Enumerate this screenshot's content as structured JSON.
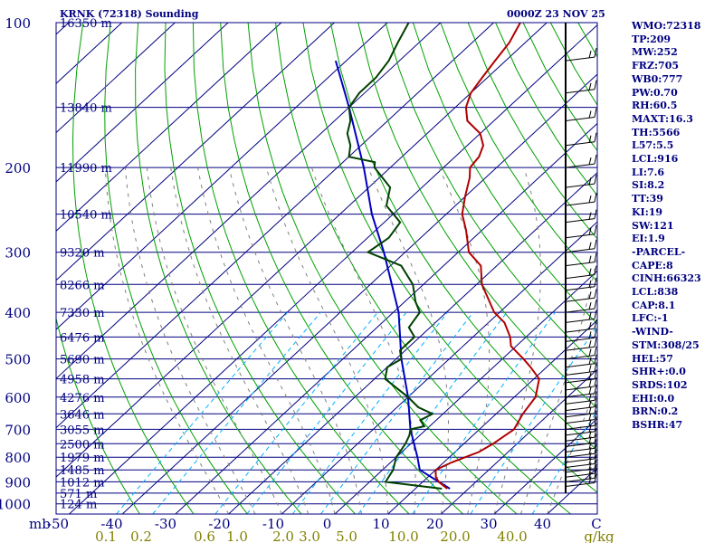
{
  "header": {
    "title": "KRNK (72318) Sounding",
    "time": "0000Z 23 NOV 25"
  },
  "indices": [
    "WMO:72318",
    "TP:209",
    "MW:252",
    "FRZ:705",
    "WB0:777",
    "PW:0.70",
    "RH:60.5",
    "MAXT:16.3",
    "TH:5566",
    "L57:5.5",
    "LCL:916",
    "LI:7.6",
    "SI:8.2",
    "TT:39",
    "KI:19",
    "SW:121",
    "EI:1.9",
    "-PARCEL-",
    "CAPE:8",
    "CINH:66323",
    "LCL:838",
    "CAP:8.1",
    "LFC:-1",
    "-WIND-",
    "STM:308/25",
    "HEL:57",
    "SHR+:0.0",
    "SRDS:102",
    "EHI:0.0",
    "BRN:0.2",
    "BSHR:47"
  ],
  "colors": {
    "axes": "#000080",
    "isotherm": "#000080",
    "dry_adiabat": "#00a000",
    "moist_adiabat": "#808080",
    "mixing_ratio": "#00b0ff",
    "temperature": "#b00000",
    "dewpoint": "#004000",
    "parcel": "#0000c0",
    "mixing_label": "#808000"
  },
  "chart_data": {
    "type": "skew-t",
    "pressure_ticks": [
      {
        "p": 100,
        "label": "100"
      },
      {
        "p": 200,
        "label": "200"
      },
      {
        "p": 300,
        "label": "300"
      },
      {
        "p": 400,
        "label": "400"
      },
      {
        "p": 500,
        "label": "500"
      },
      {
        "p": 600,
        "label": "600"
      },
      {
        "p": 700,
        "label": "700"
      },
      {
        "p": 800,
        "label": "800"
      },
      {
        "p": 900,
        "label": "900"
      },
      {
        "p": 1000,
        "label": "1000"
      }
    ],
    "pressure_unit": "mb",
    "temperature_ticks": [
      "-50",
      "-40",
      "-30",
      "-20",
      "-10",
      "0",
      "10",
      "20",
      "30",
      "40",
      "C"
    ],
    "mixing_ratio_labels": [
      "0.1",
      "0.2",
      "0.6",
      "1.0",
      "2.0",
      "3.0",
      "5.0",
      "10.0",
      "20.0",
      "40.0",
      "g/kg"
    ],
    "height_labels": [
      {
        "p": 100,
        "label": "16350 m"
      },
      {
        "p": 150,
        "label": "13840 m"
      },
      {
        "p": 200,
        "label": "11990 m"
      },
      {
        "p": 250,
        "label": "10540 m"
      },
      {
        "p": 300,
        "label": "9320 m"
      },
      {
        "p": 350,
        "label": "8266 m"
      },
      {
        "p": 400,
        "label": "7330 m"
      },
      {
        "p": 450,
        "label": "6476 m"
      },
      {
        "p": 500,
        "label": "5690 m"
      },
      {
        "p": 550,
        "label": "4958 m"
      },
      {
        "p": 600,
        "label": "4276 m"
      },
      {
        "p": 650,
        "label": "3646 m"
      },
      {
        "p": 700,
        "label": "3055 m"
      },
      {
        "p": 750,
        "label": "2500 m"
      },
      {
        "p": 800,
        "label": "1979 m"
      },
      {
        "p": 850,
        "label": "1485 m"
      },
      {
        "p": 900,
        "label": "1012 m"
      },
      {
        "p": 950,
        "label": "571 m"
      },
      {
        "p": 1000,
        "label": "124 m"
      }
    ],
    "temperature_profile": [
      [
        930,
        16.0
      ],
      [
        900,
        13.0
      ],
      [
        880,
        11.5
      ],
      [
        850,
        10.0
      ],
      [
        820,
        11.5
      ],
      [
        800,
        13.0
      ],
      [
        780,
        14.5
      ],
      [
        750,
        15.5
      ],
      [
        700,
        16.5
      ],
      [
        650,
        15.0
      ],
      [
        600,
        14.0
      ],
      [
        550,
        11.0
      ],
      [
        520,
        7.0
      ],
      [
        500,
        4.0
      ],
      [
        470,
        -1.0
      ],
      [
        450,
        -3.0
      ],
      [
        420,
        -7.0
      ],
      [
        400,
        -11.0
      ],
      [
        350,
        -19.0
      ],
      [
        320,
        -23.0
      ],
      [
        300,
        -28.0
      ],
      [
        270,
        -33.0
      ],
      [
        250,
        -37.0
      ],
      [
        230,
        -40.0
      ],
      [
        210,
        -43.0
      ],
      [
        200,
        -45.0
      ],
      [
        190,
        -45.5
      ],
      [
        180,
        -47.0
      ],
      [
        170,
        -50.0
      ],
      [
        160,
        -55.0
      ],
      [
        150,
        -58.0
      ],
      [
        140,
        -60.0
      ],
      [
        130,
        -61.0
      ],
      [
        120,
        -62.0
      ],
      [
        110,
        -63.0
      ],
      [
        100,
        -65.0
      ]
    ],
    "dewpoint_profile": [
      [
        930,
        15.0
      ],
      [
        920,
        11.0
      ],
      [
        900,
        3.0
      ],
      [
        850,
        2.0
      ],
      [
        800,
        0.0
      ],
      [
        750,
        -1.0
      ],
      [
        720,
        -2.0
      ],
      [
        700,
        -3.0
      ],
      [
        690,
        -1.0
      ],
      [
        670,
        -3.0
      ],
      [
        650,
        -2.0
      ],
      [
        630,
        -6.0
      ],
      [
        600,
        -10.0
      ],
      [
        550,
        -18.0
      ],
      [
        520,
        -20.0
      ],
      [
        500,
        -19.0
      ],
      [
        480,
        -21.0
      ],
      [
        450,
        -21.0
      ],
      [
        430,
        -24.0
      ],
      [
        400,
        -25.0
      ],
      [
        380,
        -28.0
      ],
      [
        350,
        -32.0
      ],
      [
        320,
        -38.0
      ],
      [
        300,
        -47.0
      ],
      [
        280,
        -46.0
      ],
      [
        260,
        -47.0
      ],
      [
        240,
        -53.0
      ],
      [
        220,
        -56.0
      ],
      [
        200,
        -63.0
      ],
      [
        195,
        -64.0
      ],
      [
        190,
        -70.0
      ],
      [
        180,
        -72.0
      ],
      [
        170,
        -75.0
      ],
      [
        160,
        -77.0
      ],
      [
        150,
        -80.0
      ],
      [
        140,
        -81.0
      ],
      [
        130,
        -81.0
      ],
      [
        120,
        -82.0
      ],
      [
        110,
        -84.0
      ],
      [
        100,
        -86.0
      ]
    ],
    "parcel_profile": [
      [
        930,
        16.5
      ],
      [
        900,
        13.0
      ],
      [
        850,
        7.0
      ],
      [
        800,
        4.0
      ],
      [
        700,
        -3.0
      ],
      [
        600,
        -10.0
      ],
      [
        500,
        -19.0
      ],
      [
        400,
        -29.0
      ],
      [
        300,
        -44.0
      ],
      [
        250,
        -54.0
      ],
      [
        200,
        -65.0
      ],
      [
        150,
        -80.0
      ],
      [
        120,
        -92.0
      ]
    ]
  }
}
